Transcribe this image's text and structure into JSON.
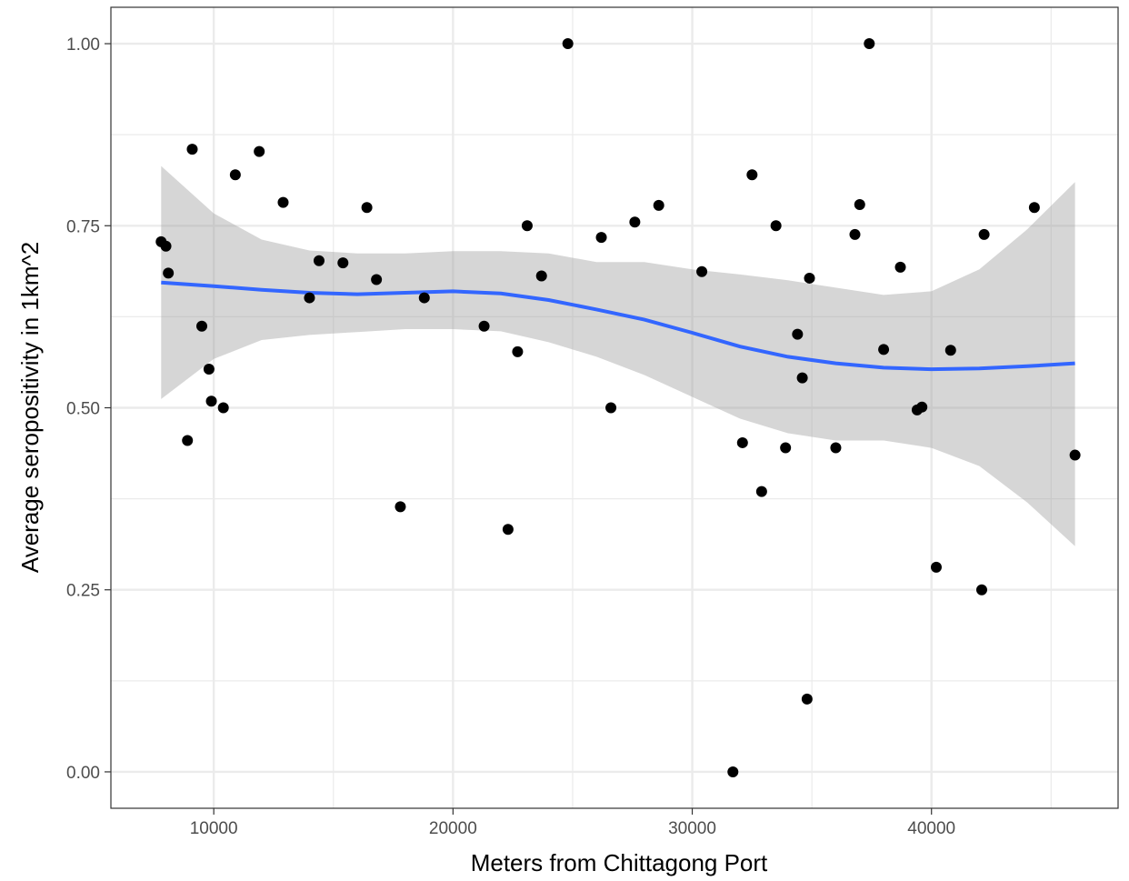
{
  "chart_data": {
    "type": "scatter",
    "xlabel": "Meters from Chittagong Port",
    "ylabel": "Average seropositivity in 1km^2",
    "xlim": [
      5700,
      47800
    ],
    "ylim": [
      -0.05,
      1.05
    ],
    "x_ticks": [
      10000,
      20000,
      30000,
      40000
    ],
    "x_tick_labels": [
      "10000",
      "20000",
      "30000",
      "40000"
    ],
    "y_ticks": [
      0,
      0.25,
      0.5,
      0.75,
      1
    ],
    "y_tick_labels": [
      "0.00",
      "0.25",
      "0.50",
      "0.75",
      "1.00"
    ],
    "grid": true,
    "colors": {
      "points": "#000000",
      "smooth_line": "#3366ff",
      "confidence_band": "#999999",
      "grid": "#ebebeb",
      "panel_border": "#333333"
    },
    "points": [
      {
        "x": 7800,
        "y": 0.728
      },
      {
        "x": 8000,
        "y": 0.722
      },
      {
        "x": 8100,
        "y": 0.685
      },
      {
        "x": 8900,
        "y": 0.455
      },
      {
        "x": 9100,
        "y": 0.855
      },
      {
        "x": 9500,
        "y": 0.612
      },
      {
        "x": 9800,
        "y": 0.553
      },
      {
        "x": 9900,
        "y": 0.509
      },
      {
        "x": 10400,
        "y": 0.5
      },
      {
        "x": 10900,
        "y": 0.82
      },
      {
        "x": 11900,
        "y": 0.852
      },
      {
        "x": 12900,
        "y": 0.782
      },
      {
        "x": 14000,
        "y": 0.651
      },
      {
        "x": 14400,
        "y": 0.702
      },
      {
        "x": 15400,
        "y": 0.699
      },
      {
        "x": 16400,
        "y": 0.775
      },
      {
        "x": 16800,
        "y": 0.676
      },
      {
        "x": 17800,
        "y": 0.364
      },
      {
        "x": 18800,
        "y": 0.651
      },
      {
        "x": 21300,
        "y": 0.612
      },
      {
        "x": 22300,
        "y": 0.333
      },
      {
        "x": 22700,
        "y": 0.577
      },
      {
        "x": 23100,
        "y": 0.75
      },
      {
        "x": 23700,
        "y": 0.681
      },
      {
        "x": 24800,
        "y": 1.0
      },
      {
        "x": 26200,
        "y": 0.734
      },
      {
        "x": 26600,
        "y": 0.5
      },
      {
        "x": 27600,
        "y": 0.755
      },
      {
        "x": 28600,
        "y": 0.778
      },
      {
        "x": 30400,
        "y": 0.687
      },
      {
        "x": 31700,
        "y": 0.0
      },
      {
        "x": 32100,
        "y": 0.452
      },
      {
        "x": 32500,
        "y": 0.82
      },
      {
        "x": 32900,
        "y": 0.385
      },
      {
        "x": 33500,
        "y": 0.75
      },
      {
        "x": 33900,
        "y": 0.445
      },
      {
        "x": 34400,
        "y": 0.601
      },
      {
        "x": 34600,
        "y": 0.541
      },
      {
        "x": 34800,
        "y": 0.1
      },
      {
        "x": 34900,
        "y": 0.678
      },
      {
        "x": 36000,
        "y": 0.445
      },
      {
        "x": 36800,
        "y": 0.738
      },
      {
        "x": 37000,
        "y": 0.779
      },
      {
        "x": 37400,
        "y": 1.0
      },
      {
        "x": 38000,
        "y": 0.58
      },
      {
        "x": 38700,
        "y": 0.693
      },
      {
        "x": 39400,
        "y": 0.497
      },
      {
        "x": 39600,
        "y": 0.501
      },
      {
        "x": 40200,
        "y": 0.281
      },
      {
        "x": 40800,
        "y": 0.579
      },
      {
        "x": 42100,
        "y": 0.25
      },
      {
        "x": 42200,
        "y": 0.738
      },
      {
        "x": 44300,
        "y": 0.775
      },
      {
        "x": 46000,
        "y": 0.435
      }
    ],
    "smooth": {
      "method": "loess",
      "x": [
        7800,
        10000,
        12000,
        14000,
        16000,
        18000,
        20000,
        22000,
        24000,
        26000,
        28000,
        30000,
        32000,
        34000,
        36000,
        38000,
        40000,
        42000,
        44000,
        46000
      ],
      "y": [
        0.672,
        0.667,
        0.662,
        0.658,
        0.656,
        0.658,
        0.66,
        0.657,
        0.648,
        0.635,
        0.621,
        0.603,
        0.584,
        0.57,
        0.561,
        0.555,
        0.553,
        0.554,
        0.557,
        0.561
      ],
      "lower": [
        0.512,
        0.567,
        0.593,
        0.6,
        0.604,
        0.608,
        0.608,
        0.605,
        0.59,
        0.57,
        0.545,
        0.515,
        0.485,
        0.465,
        0.455,
        0.455,
        0.445,
        0.42,
        0.37,
        0.31
      ],
      "upper": [
        0.832,
        0.767,
        0.731,
        0.716,
        0.712,
        0.712,
        0.715,
        0.715,
        0.712,
        0.7,
        0.7,
        0.69,
        0.683,
        0.675,
        0.665,
        0.655,
        0.66,
        0.69,
        0.745,
        0.81
      ]
    }
  }
}
